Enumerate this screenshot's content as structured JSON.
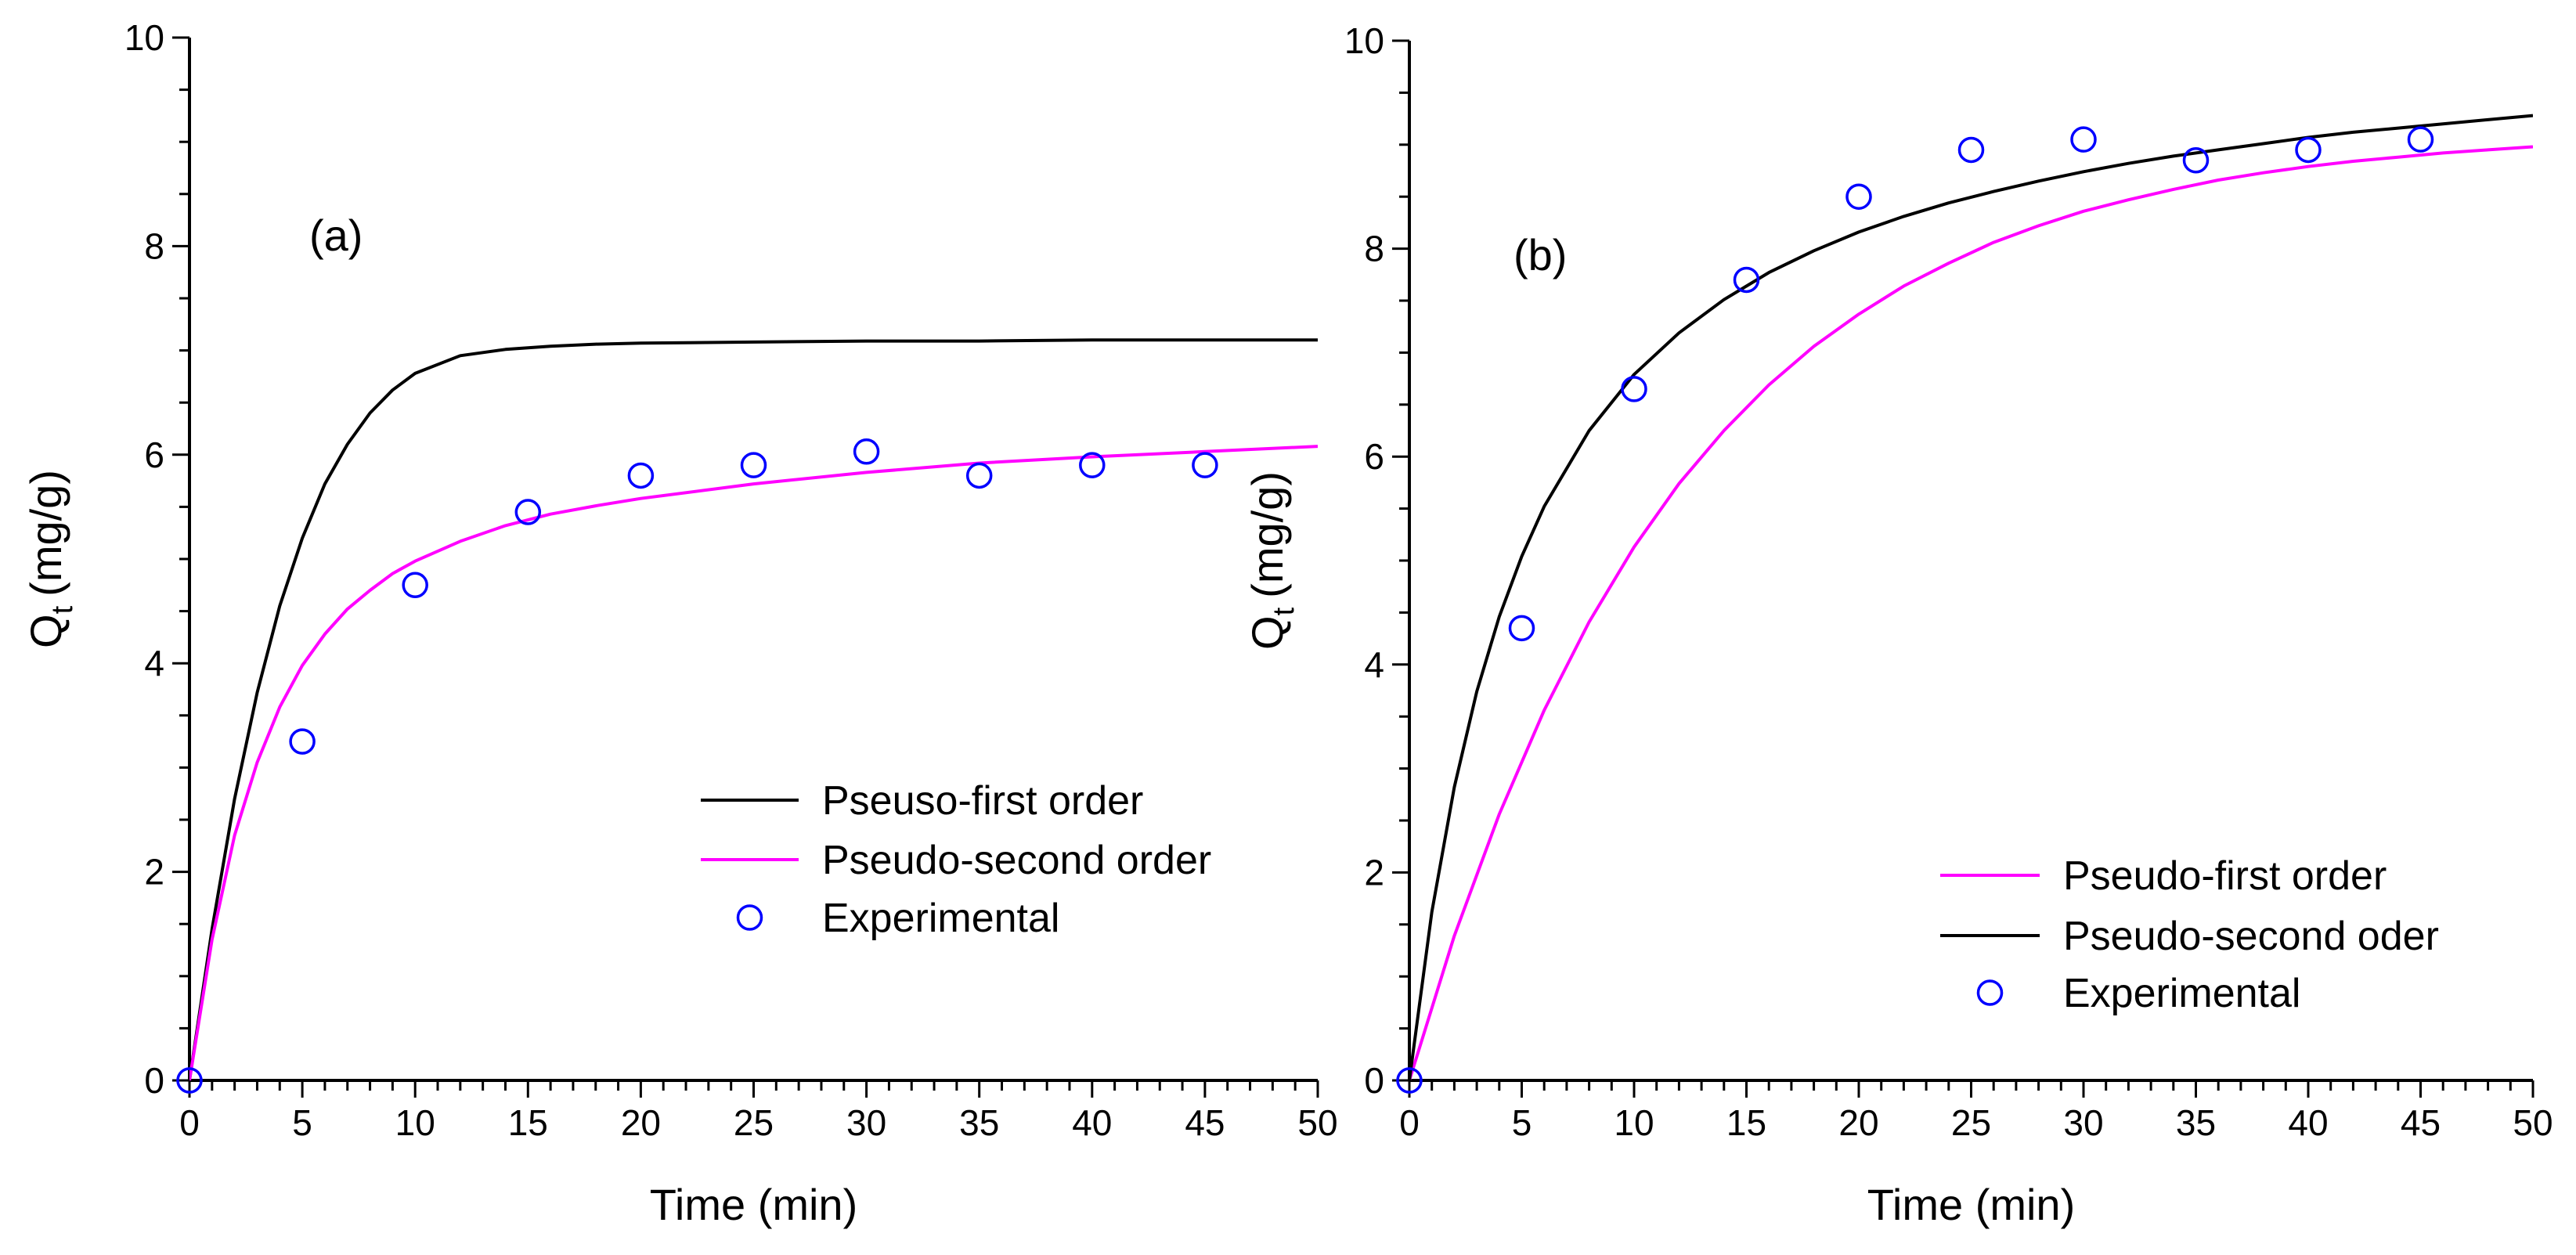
{
  "chart_data": [
    {
      "type": "line",
      "panel_label": "(a)",
      "xlabel": "Time (min)",
      "ylabel": "Q",
      "ylabel_subscript": "t",
      "ylabel_units": "(mg/g)",
      "xlim": [
        0,
        50
      ],
      "ylim": [
        0,
        10
      ],
      "xticks": [
        "0",
        "5",
        "10",
        "15",
        "20",
        "25",
        "30",
        "35",
        "40",
        "45",
        "50"
      ],
      "yticks": [
        "0",
        "2",
        "4",
        "6",
        "8",
        "10"
      ],
      "legend_position": "bottom-right",
      "series": [
        {
          "name": "Pseuso-first order",
          "kind": "line",
          "color": "#000000",
          "x": [
            0,
            1,
            2,
            3,
            4,
            5,
            6,
            7,
            8,
            9,
            10,
            12,
            14,
            16,
            18,
            20,
            25,
            30,
            35,
            40,
            45,
            50
          ],
          "y": [
            0,
            1.45,
            2.7,
            3.72,
            4.55,
            5.2,
            5.72,
            6.1,
            6.4,
            6.62,
            6.78,
            6.95,
            7.01,
            7.04,
            7.06,
            7.07,
            7.08,
            7.09,
            7.09,
            7.1,
            7.1,
            7.1
          ]
        },
        {
          "name": "Pseudo-second order",
          "kind": "line",
          "color": "#ff00ff",
          "x": [
            0,
            1,
            2,
            3,
            4,
            5,
            6,
            7,
            8,
            9,
            10,
            12,
            14,
            16,
            18,
            20,
            25,
            30,
            35,
            40,
            45,
            50
          ],
          "y": [
            0,
            1.35,
            2.35,
            3.05,
            3.58,
            3.98,
            4.28,
            4.52,
            4.7,
            4.86,
            4.98,
            5.17,
            5.32,
            5.43,
            5.51,
            5.58,
            5.72,
            5.83,
            5.92,
            5.98,
            6.03,
            6.08
          ]
        },
        {
          "name": "Experimental",
          "kind": "scatter",
          "color": "#0000ff",
          "x": [
            0,
            5,
            10,
            15,
            20,
            25,
            30,
            35,
            40,
            45
          ],
          "y": [
            0,
            3.25,
            4.75,
            5.45,
            5.8,
            5.9,
            6.03,
            5.8,
            5.9,
            5.9
          ]
        }
      ]
    },
    {
      "type": "line",
      "panel_label": "(b)",
      "xlabel": "Time (min)",
      "ylabel": "Q",
      "ylabel_subscript": "t",
      "ylabel_units": "(mg/g)",
      "xlim": [
        0,
        50
      ],
      "ylim": [
        0,
        10
      ],
      "xticks": [
        "0",
        "5",
        "10",
        "15",
        "20",
        "25",
        "30",
        "35",
        "40",
        "45",
        "50"
      ],
      "yticks": [
        "0",
        "2",
        "4",
        "6",
        "8",
        "10"
      ],
      "legend_position": "bottom-right",
      "series": [
        {
          "name": "Pseudo-first order",
          "kind": "line",
          "color": "#ff00ff",
          "x": [
            0,
            2,
            4,
            6,
            8,
            10,
            12,
            14,
            16,
            18,
            20,
            22,
            24,
            26,
            28,
            30,
            32,
            34,
            36,
            38,
            40,
            42,
            44,
            46,
            48,
            50
          ],
          "y": [
            0,
            1.39,
            2.56,
            3.56,
            4.41,
            5.13,
            5.74,
            6.25,
            6.69,
            7.06,
            7.37,
            7.64,
            7.86,
            8.06,
            8.22,
            8.36,
            8.47,
            8.57,
            8.66,
            8.73,
            8.79,
            8.84,
            8.88,
            8.92,
            8.95,
            8.98
          ]
        },
        {
          "name": "Pseudo-second oder",
          "kind": "line",
          "color": "#000000",
          "x": [
            0,
            1,
            2,
            3,
            4,
            5,
            6,
            8,
            10,
            12,
            14,
            16,
            18,
            20,
            22,
            24,
            26,
            28,
            30,
            32,
            34,
            36,
            38,
            40,
            42,
            44,
            46,
            48,
            50
          ],
          "y": [
            0,
            1.62,
            2.82,
            3.74,
            4.46,
            5.04,
            5.52,
            6.25,
            6.79,
            7.19,
            7.51,
            7.77,
            7.98,
            8.16,
            8.31,
            8.44,
            8.55,
            8.65,
            8.74,
            8.82,
            8.89,
            8.95,
            9.01,
            9.07,
            9.12,
            9.16,
            9.2,
            9.24,
            9.28
          ]
        },
        {
          "name": "Experimental",
          "kind": "scatter",
          "color": "#0000ff",
          "x": [
            0,
            5,
            10,
            15,
            20,
            25,
            30,
            35,
            40,
            45
          ],
          "y": [
            0,
            4.35,
            6.65,
            7.7,
            8.5,
            8.95,
            9.05,
            8.85,
            8.95,
            9.05
          ]
        }
      ]
    }
  ]
}
